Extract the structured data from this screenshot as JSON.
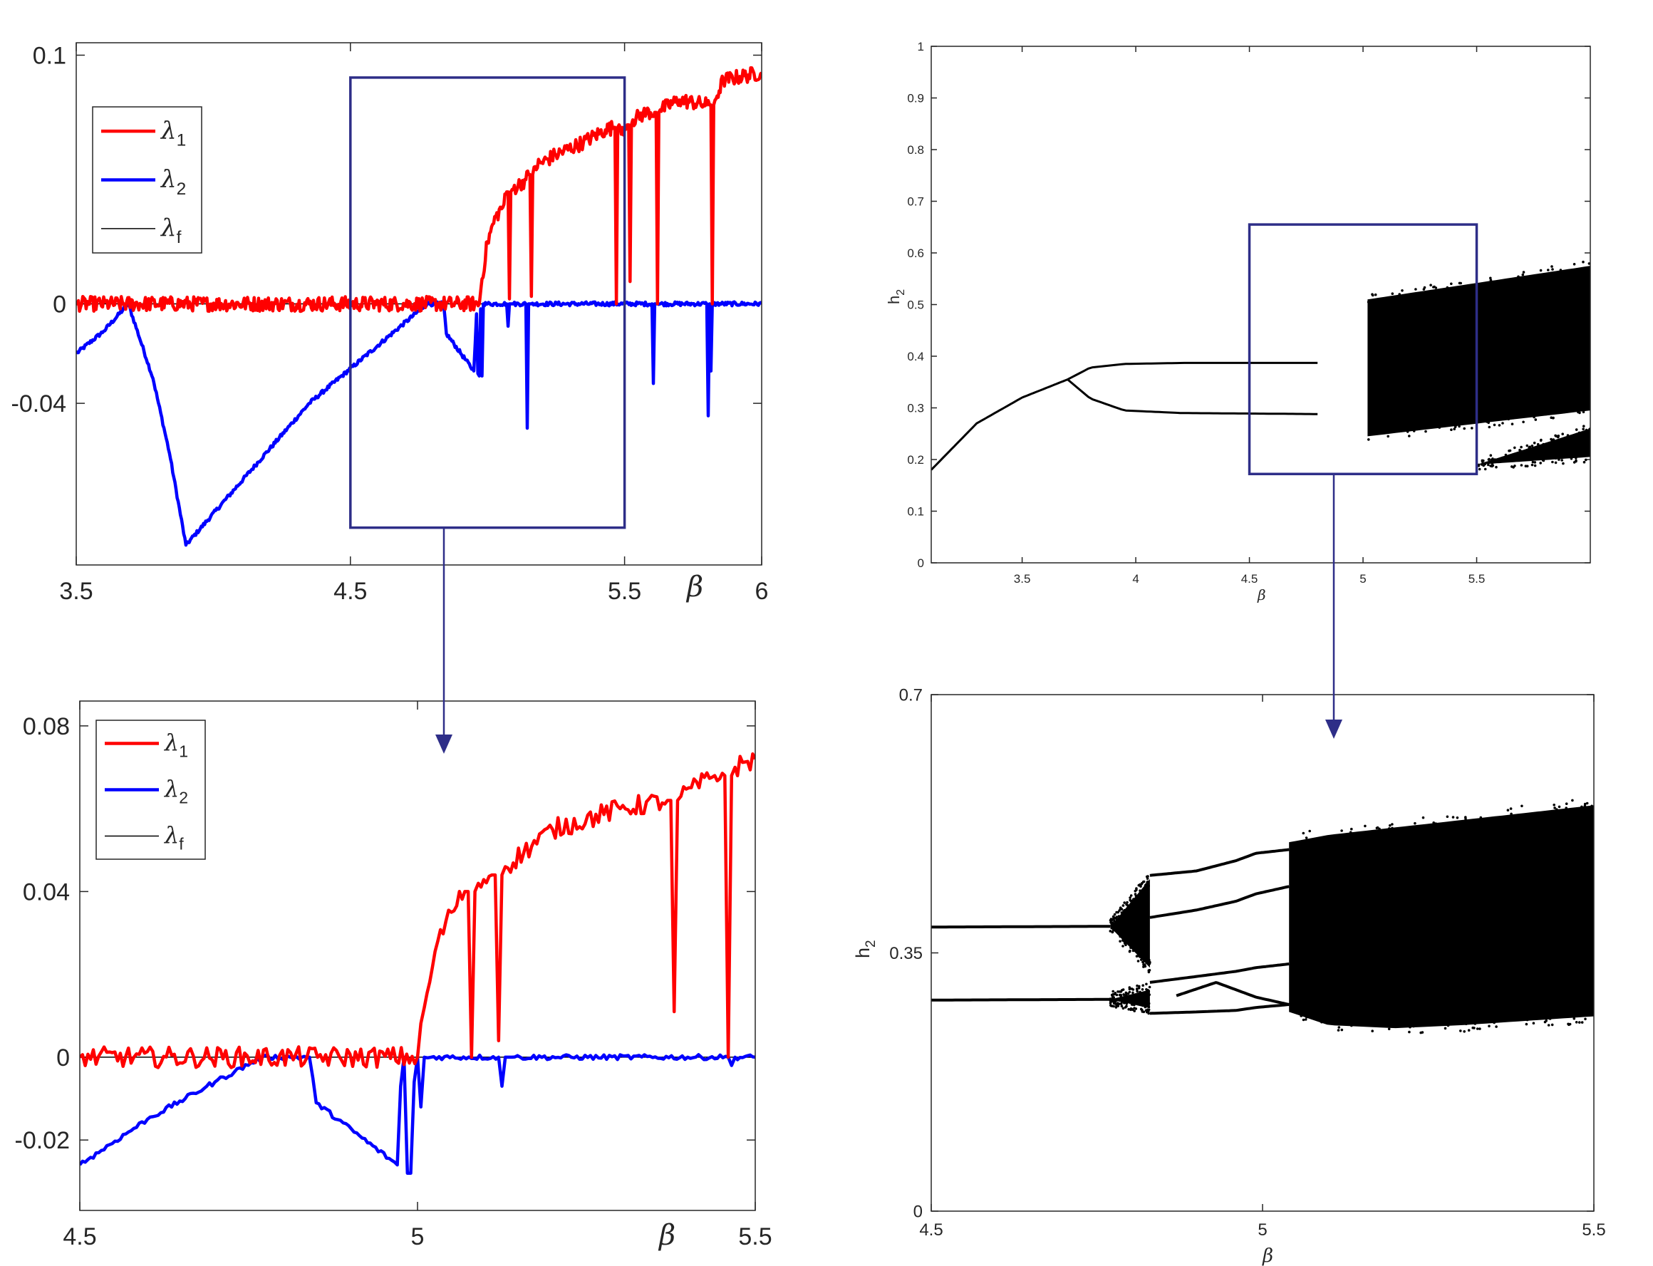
{
  "chart_data": [
    {
      "id": "lyap_full",
      "type": "line",
      "xlim": [
        3.5,
        6.0
      ],
      "ylim": [
        -0.105,
        0.105
      ],
      "x_ticks": [
        3.5,
        4.5,
        5.5,
        6
      ],
      "x_tick_labels": [
        "3.5",
        "4.5",
        "5.5",
        "6"
      ],
      "y_ticks": [
        0.1,
        0,
        -0.04
      ],
      "y_tick_labels": [
        "0.1",
        "0",
        "-0.04"
      ],
      "xlabel": "β",
      "ylabel": "",
      "legend": {
        "placement": "top-left",
        "entries": [
          {
            "sym": "λ",
            "sub": "1",
            "color": "#ff0000"
          },
          {
            "sym": "λ",
            "sub": "2",
            "color": "#0000ff"
          },
          {
            "sym": "λ",
            "sub": "f",
            "color": "#000000"
          }
        ]
      },
      "zoom_box": {
        "x": [
          4.5,
          5.5
        ],
        "y": [
          -0.09,
          0.091
        ]
      },
      "series": [
        {
          "name": "λ1",
          "color": "#ff0000",
          "noise": 0.003,
          "x": [
            3.5,
            4.97,
            4.98,
            5.0,
            5.03,
            5.06,
            5.07,
            5.075,
            5.08,
            5.085,
            5.09,
            5.14,
            5.15,
            5.155,
            5.16,
            5.165,
            5.17,
            5.25,
            5.35,
            5.43,
            5.46,
            5.465,
            5.47,
            5.475,
            5.48,
            5.5,
            5.51,
            5.515,
            5.52,
            5.525,
            5.53,
            5.58,
            5.61,
            5.615,
            5.62,
            5.625,
            5.63,
            5.7,
            5.8,
            5.81,
            5.815,
            5.82,
            5.825,
            5.83,
            5.86,
            6.0
          ],
          "y": [
            0.0,
            0.0,
            0.01,
            0.025,
            0.035,
            0.04,
            0.045,
            0.045,
            0.002,
            0.045,
            0.046,
            0.05,
            0.052,
            0.052,
            0.003,
            0.052,
            0.055,
            0.06,
            0.065,
            0.07,
            0.071,
            0.071,
            0.0,
            0.071,
            0.072,
            0.07,
            0.072,
            0.072,
            0.009,
            0.072,
            0.074,
            0.077,
            0.077,
            0.077,
            0.0,
            0.077,
            0.078,
            0.082,
            0.08,
            0.08,
            0.08,
            0.0,
            0.08,
            0.082,
            0.09,
            0.093
          ]
        },
        {
          "name": "λ2",
          "color": "#0000ff",
          "noise": 0.0008,
          "x": [
            3.5,
            3.6,
            3.69,
            3.78,
            3.84,
            3.9,
            4.35,
            4.78,
            4.84,
            4.85,
            4.95,
            4.96,
            4.965,
            4.97,
            4.975,
            4.98,
            4.985,
            5.0,
            5.07,
            5.075,
            5.08,
            5.085,
            5.09,
            5.14,
            5.145,
            5.15,
            5.155,
            5.16,
            5.6,
            5.605,
            5.61,
            5.615,
            5.62,
            5.8,
            5.805,
            5.81,
            5.815,
            5.82,
            6.0
          ],
          "y": [
            -0.02,
            -0.011,
            0.0,
            -0.03,
            -0.06,
            -0.097,
            -0.04,
            0.0,
            0.0,
            -0.012,
            -0.027,
            -0.004,
            -0.028,
            -0.029,
            -0.002,
            -0.029,
            0.0,
            0.0,
            0.0,
            -0.009,
            0.0,
            0.0,
            0.0,
            0.0,
            -0.05,
            0.0,
            0.0,
            0.0,
            0.0,
            -0.032,
            0.0,
            0.0,
            0.0,
            0.0,
            -0.045,
            0.0,
            -0.027,
            0.0,
            0.0
          ]
        },
        {
          "name": "λf",
          "color": "#000000",
          "noise": 0.0,
          "x": [
            3.5,
            6.0
          ],
          "y": [
            0.0,
            0.0
          ]
        }
      ]
    },
    {
      "id": "bif_full",
      "type": "scatter",
      "xlim": [
        3.1,
        6.0
      ],
      "ylim": [
        0,
        1
      ],
      "x_ticks": [
        3.5,
        4,
        4.5,
        5,
        5.5
      ],
      "x_tick_labels": [
        "3.5",
        "4",
        "4.5",
        "5",
        "5.5"
      ],
      "y_ticks": [
        0,
        0.1,
        0.2,
        0.3,
        0.4,
        0.5,
        0.6,
        0.7,
        0.8,
        0.9,
        1
      ],
      "y_tick_labels": [
        "0",
        "0.1",
        "0.2",
        "0.3",
        "0.4",
        "0.5",
        "0.6",
        "0.7",
        "0.8",
        "0.9",
        "1"
      ],
      "xlabel": "β",
      "ylabel": "h",
      "ylabel_sub": "2",
      "zoom_box": {
        "x": [
          4.5,
          5.5
        ],
        "y": [
          0.172,
          0.655
        ]
      },
      "branches": [
        {
          "x": [
            3.1,
            3.3,
            3.5,
            3.7
          ],
          "y": [
            0.18,
            0.27,
            0.32,
            0.355
          ]
        },
        {
          "x": [
            3.7,
            3.8,
            3.95,
            4.2,
            4.8
          ],
          "y": [
            0.355,
            0.378,
            0.385,
            0.387,
            0.387
          ]
        },
        {
          "x": [
            3.7,
            3.8,
            3.95,
            4.2,
            4.8
          ],
          "y": [
            0.355,
            0.318,
            0.295,
            0.29,
            0.288
          ]
        }
      ],
      "chaos_bands": [
        {
          "x": [
            5.02,
            6.0
          ],
          "upper": [
            0.51,
            0.575
          ],
          "lower": [
            0.245,
            0.295
          ]
        },
        {
          "x": [
            5.5,
            6.0
          ],
          "upper": [
            0.19,
            0.26
          ],
          "lower": [
            0.19,
            0.205
          ]
        }
      ]
    },
    {
      "id": "lyap_zoom",
      "type": "line",
      "xlim": [
        4.5,
        5.5
      ],
      "ylim": [
        -0.037,
        0.086
      ],
      "x_ticks": [
        4.5,
        5,
        5.5
      ],
      "x_tick_labels": [
        "4.5",
        "5",
        "5.5"
      ],
      "y_ticks": [
        0.08,
        0.04,
        0,
        -0.02
      ],
      "y_tick_labels": [
        "0.08",
        "0.04",
        "0",
        "-0.02"
      ],
      "xlabel": "β",
      "ylabel": "",
      "legend": {
        "placement": "top-left",
        "entries": [
          {
            "sym": "λ",
            "sub": "1",
            "color": "#ff0000"
          },
          {
            "sym": "λ",
            "sub": "2",
            "color": "#0000ff"
          },
          {
            "sym": "λ",
            "sub": "f",
            "color": "#000000"
          }
        ]
      },
      "series": [
        {
          "name": "λ1",
          "color": "#ff0000",
          "noise": 0.0025,
          "x": [
            4.5,
            5.0,
            5.01,
            5.03,
            5.05,
            5.07,
            5.075,
            5.08,
            5.085,
            5.09,
            5.11,
            5.115,
            5.12,
            5.125,
            5.13,
            5.2,
            5.3,
            5.37,
            5.375,
            5.38,
            5.385,
            5.39,
            5.44,
            5.455,
            5.46,
            5.465,
            5.47,
            5.5
          ],
          "y": [
            0.0,
            0.0,
            0.012,
            0.028,
            0.035,
            0.04,
            0.04,
            0.0,
            0.04,
            0.042,
            0.044,
            0.044,
            0.004,
            0.044,
            0.046,
            0.055,
            0.06,
            0.062,
            0.062,
            0.011,
            0.062,
            0.063,
            0.068,
            0.068,
            0.0,
            0.068,
            0.07,
            0.072
          ]
        },
        {
          "name": "λ2",
          "color": "#0000ff",
          "noise": 0.0006,
          "x": [
            4.5,
            4.6,
            4.7,
            4.77,
            4.84,
            4.85,
            4.97,
            4.975,
            4.98,
            4.985,
            4.99,
            4.995,
            5.0,
            5.005,
            5.01,
            5.02,
            5.12,
            5.125,
            5.13,
            5.135,
            5.14,
            5.46,
            5.465,
            5.47,
            5.5
          ],
          "y": [
            -0.026,
            -0.015,
            -0.006,
            0.0,
            0.0,
            -0.011,
            -0.026,
            -0.007,
            0.0,
            -0.028,
            -0.028,
            -0.006,
            0.0,
            -0.012,
            0.0,
            0.0,
            0.0,
            -0.007,
            0.0,
            0.0,
            0.0,
            0.0,
            -0.002,
            0.0,
            0.0
          ]
        },
        {
          "name": "λf",
          "color": "#000000",
          "noise": 0.0,
          "x": [
            4.5,
            5.5
          ],
          "y": [
            0.0,
            0.0
          ]
        }
      ]
    },
    {
      "id": "bif_zoom",
      "type": "scatter",
      "xlim": [
        4.5,
        5.5
      ],
      "ylim": [
        0,
        0.7
      ],
      "x_ticks": [
        4.5,
        5,
        5.5
      ],
      "x_tick_labels": [
        "4.5",
        "5",
        "5.5"
      ],
      "y_ticks": [
        0,
        0.35,
        0.7
      ],
      "y_tick_labels": [
        "0",
        "0.35",
        "0.7"
      ],
      "xlabel": "β",
      "ylabel": "h",
      "ylabel_sub": "2",
      "branches": [
        {
          "x": [
            4.5,
            4.77
          ],
          "y": [
            0.385,
            0.386
          ]
        },
        {
          "x": [
            4.5,
            4.77
          ],
          "y": [
            0.286,
            0.287
          ]
        },
        {
          "x": [
            4.83,
            4.9,
            4.96,
            4.99,
            5.04
          ],
          "y": [
            0.455,
            0.461,
            0.475,
            0.485,
            0.49
          ]
        },
        {
          "x": [
            4.83,
            4.9,
            4.96,
            4.99,
            5.04
          ],
          "y": [
            0.398,
            0.408,
            0.42,
            0.43,
            0.44
          ]
        },
        {
          "x": [
            4.83,
            4.9,
            4.96,
            4.99,
            5.04
          ],
          "y": [
            0.31,
            0.318,
            0.325,
            0.33,
            0.335
          ]
        },
        {
          "x": [
            4.83,
            4.9,
            4.96,
            4.99,
            5.04
          ],
          "y": [
            0.268,
            0.27,
            0.272,
            0.276,
            0.28
          ]
        },
        {
          "x": [
            4.87,
            4.93,
            4.99,
            5.04
          ],
          "y": [
            0.292,
            0.31,
            0.29,
            0.28
          ]
        }
      ],
      "chaos_bands": [
        {
          "x": [
            4.77,
            4.83
          ],
          "upper": [
            0.385,
            0.45
          ],
          "lower": [
            0.385,
            0.33
          ]
        },
        {
          "x": [
            4.77,
            4.83
          ],
          "upper": [
            0.287,
            0.3
          ],
          "lower": [
            0.287,
            0.275
          ]
        },
        {
          "x": [
            5.04,
            5.1,
            5.2,
            5.3,
            5.4,
            5.5
          ],
          "upper": [
            0.5,
            0.51,
            0.52,
            0.53,
            0.54,
            0.55
          ],
          "lower": [
            0.27,
            0.252,
            0.248,
            0.252,
            0.258,
            0.264
          ]
        }
      ]
    }
  ]
}
